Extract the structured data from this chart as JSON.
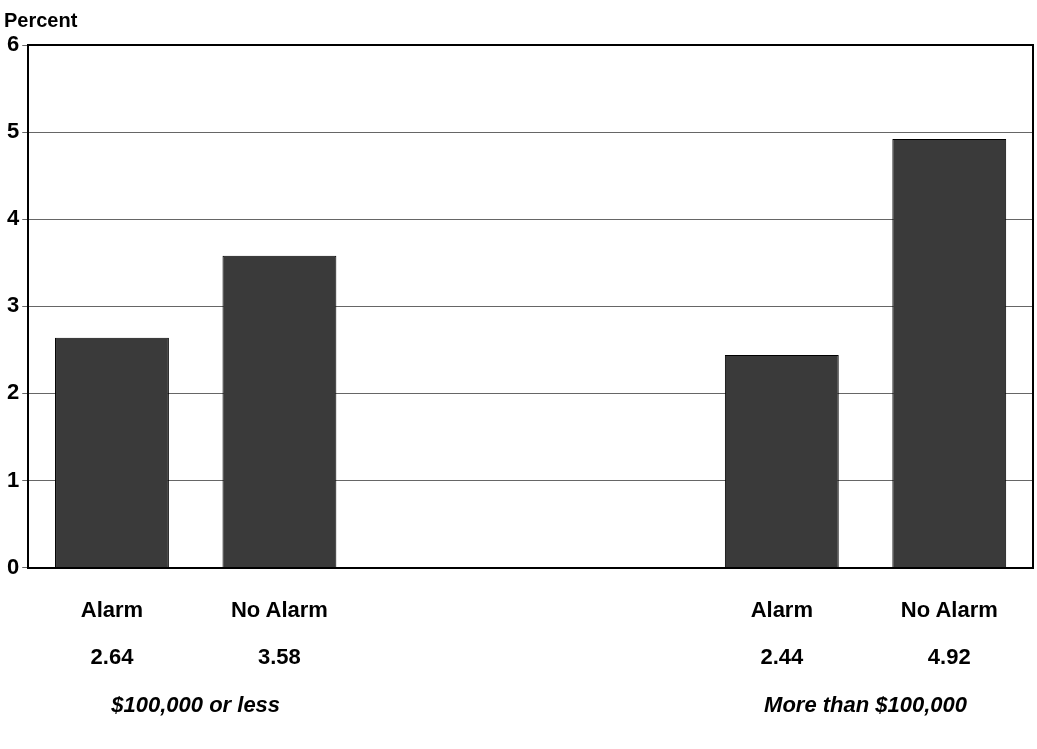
{
  "chart_data": {
    "type": "bar",
    "ylabel": "Percent",
    "categories": [
      "Alarm",
      "No Alarm",
      null,
      null,
      "Alarm",
      "No Alarm"
    ],
    "values": [
      2.64,
      3.58,
      null,
      null,
      2.44,
      4.92
    ],
    "color": "#3a3a3a",
    "ylim": [
      0,
      6
    ],
    "yticks": [
      0,
      1,
      2,
      3,
      4,
      5,
      6
    ],
    "grid": "y",
    "data_labels": true,
    "annotations": [
      "$100,000 or less",
      "More than $100,000"
    ]
  }
}
